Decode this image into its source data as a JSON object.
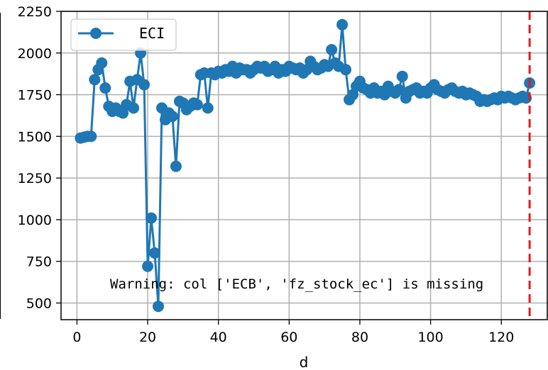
{
  "chart_data": {
    "type": "line",
    "title": "",
    "xlabel": "d",
    "ylabel": "",
    "xlim": [
      -4.5,
      133
    ],
    "ylim": [
      400,
      2250
    ],
    "xticks": [
      0,
      20,
      40,
      60,
      80,
      100,
      120
    ],
    "yticks": [
      500,
      750,
      1000,
      1250,
      1500,
      1750,
      2000,
      2250
    ],
    "grid": true,
    "legend_position": "top-left",
    "vline": {
      "x": 128,
      "color": "#e31a1c",
      "style": "dashed"
    },
    "annotation": "Warning: col ['ECB', 'fz_stock_ec'] is missing",
    "series": [
      {
        "name": "ECI",
        "color": "#1f77b4",
        "x": [
          1,
          2,
          3,
          4,
          5,
          6,
          7,
          8,
          9,
          10,
          11,
          12,
          13,
          14,
          15,
          16,
          17,
          18,
          19,
          20,
          21,
          22,
          23,
          24,
          25,
          26,
          27,
          28,
          29,
          30,
          31,
          32,
          33,
          34,
          35,
          36,
          37,
          38,
          39,
          40,
          41,
          42,
          43,
          44,
          45,
          46,
          47,
          48,
          49,
          50,
          51,
          52,
          53,
          54,
          55,
          56,
          57,
          58,
          59,
          60,
          61,
          62,
          63,
          64,
          65,
          66,
          67,
          68,
          69,
          70,
          71,
          72,
          73,
          74,
          75,
          76,
          77,
          78,
          79,
          80,
          81,
          82,
          83,
          84,
          85,
          86,
          87,
          88,
          89,
          90,
          91,
          92,
          93,
          94,
          95,
          96,
          97,
          98,
          99,
          100,
          101,
          102,
          103,
          104,
          105,
          106,
          107,
          108,
          109,
          110,
          111,
          112,
          113,
          114,
          115,
          116,
          117,
          118,
          119,
          120,
          121,
          122,
          123,
          124,
          125,
          126,
          127,
          128
        ],
        "values": [
          1490,
          1495,
          1500,
          1500,
          1840,
          1900,
          1940,
          1790,
          1680,
          1650,
          1670,
          1650,
          1640,
          1690,
          1830,
          1670,
          1840,
          2000,
          1810,
          720,
          1010,
          800,
          480,
          1670,
          1600,
          1640,
          1620,
          1320,
          1710,
          1700,
          1660,
          1680,
          1700,
          1690,
          1870,
          1880,
          1670,
          1880,
          1870,
          1890,
          1880,
          1900,
          1890,
          1920,
          1880,
          1910,
          1900,
          1900,
          1880,
          1900,
          1920,
          1910,
          1920,
          1890,
          1900,
          1920,
          1880,
          1900,
          1890,
          1920,
          1910,
          1900,
          1910,
          1880,
          1900,
          1950,
          1920,
          1900,
          1910,
          1930,
          1920,
          2020,
          1940,
          1920,
          2170,
          1900,
          1720,
          1750,
          1800,
          1830,
          1790,
          1780,
          1760,
          1790,
          1760,
          1770,
          1750,
          1800,
          1770,
          1760,
          1780,
          1860,
          1730,
          1770,
          1780,
          1790,
          1760,
          1770,
          1760,
          1790,
          1810,
          1780,
          1770,
          1760,
          1780,
          1790,
          1770,
          1760,
          1770,
          1750,
          1760,
          1750,
          1740,
          1710,
          1720,
          1710,
          1720,
          1730,
          1720,
          1740,
          1730,
          1740,
          1730,
          1720,
          1730,
          1740,
          1730,
          1820
        ]
      }
    ]
  }
}
